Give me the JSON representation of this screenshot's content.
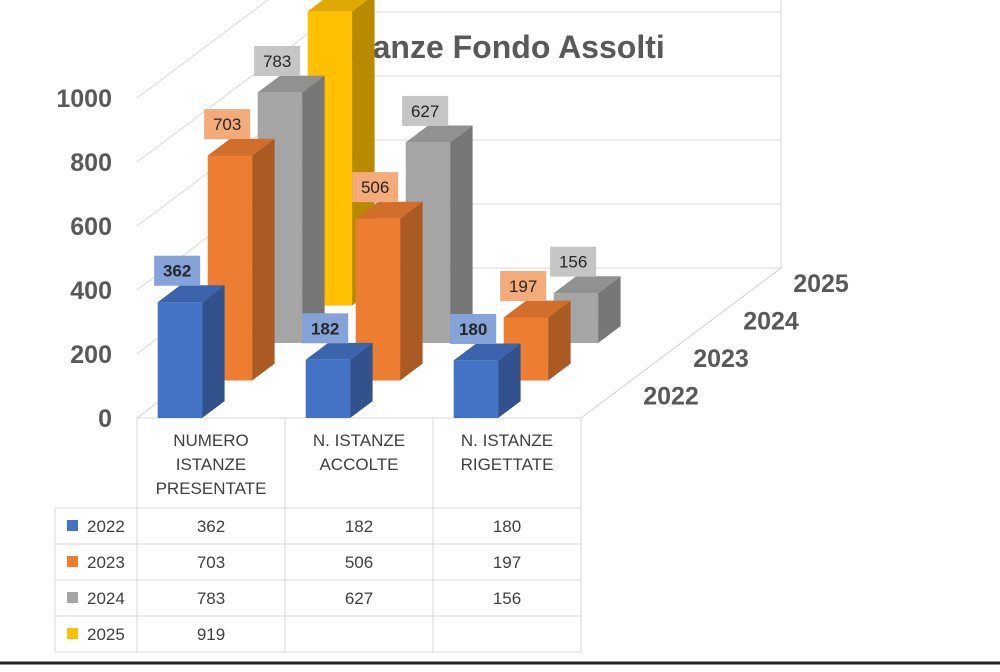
{
  "chart_data": {
    "type": "bar",
    "title": "Istanze Fondo Assolti",
    "categories": [
      "NUMERO ISTANZE PRESENTATE",
      "N. ISTANZE ACCOLTE",
      "N. ISTANZE RIGETTATE"
    ],
    "category_lines": [
      [
        "NUMERO",
        "ISTANZE",
        "PRESENTATE"
      ],
      [
        "N. ISTANZE",
        "ACCOLTE"
      ],
      [
        "N. ISTANZE",
        "RIGETTATE"
      ]
    ],
    "y_ticks": [
      "0",
      "200",
      "400",
      "600",
      "800",
      "1000"
    ],
    "ylim": [
      0,
      1000
    ],
    "depth_labels": [
      "2022",
      "2023",
      "2024",
      "2025"
    ],
    "series": [
      {
        "name": "2022",
        "color": "#4472C4",
        "values": [
          362,
          182,
          180
        ],
        "labels": [
          "362",
          "182",
          "180"
        ]
      },
      {
        "name": "2023",
        "color": "#ED7D31",
        "values": [
          703,
          506,
          197
        ],
        "labels": [
          "703",
          "506",
          "197"
        ]
      },
      {
        "name": "2024",
        "color": "#A5A5A5",
        "values": [
          783,
          627,
          156
        ],
        "labels": [
          "783",
          "627",
          "156"
        ]
      },
      {
        "name": "2025",
        "color": "#FFC000",
        "values": [
          919,
          null,
          null
        ],
        "labels": [
          "919",
          "",
          ""
        ]
      }
    ],
    "legend": "data-table-below",
    "grid": true,
    "view": "3d"
  }
}
